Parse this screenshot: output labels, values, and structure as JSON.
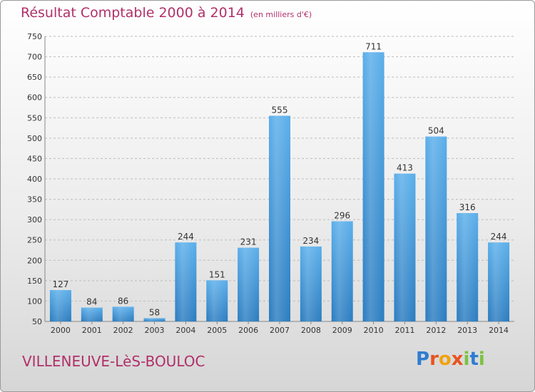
{
  "header": {
    "title": "Résultat Comptable 2000 à 2014",
    "subtitle": "(en milliers d'€)"
  },
  "footer": {
    "place": "VILLENEUVE-LèS-BOULOC",
    "logo": "Proxiti"
  },
  "colors": {
    "title": "#b0306a",
    "bar_top": "#5aaeea",
    "bar_bottom": "#2a7cc0"
  },
  "chart_data": {
    "type": "bar",
    "title": "Résultat Comptable 2000 à 2014",
    "xlabel": "",
    "ylabel": "",
    "ylim": [
      50,
      750
    ],
    "yticks": [
      50,
      100,
      150,
      200,
      250,
      300,
      350,
      400,
      450,
      500,
      550,
      600,
      650,
      700,
      750
    ],
    "categories": [
      "2000",
      "2001",
      "2002",
      "2003",
      "2004",
      "2005",
      "2006",
      "2007",
      "2008",
      "2009",
      "2010",
      "2011",
      "2012",
      "2013",
      "2014"
    ],
    "values": [
      127,
      84,
      86,
      58,
      244,
      151,
      231,
      555,
      234,
      296,
      711,
      413,
      504,
      316,
      244
    ],
    "grid": true,
    "legend": "none"
  }
}
